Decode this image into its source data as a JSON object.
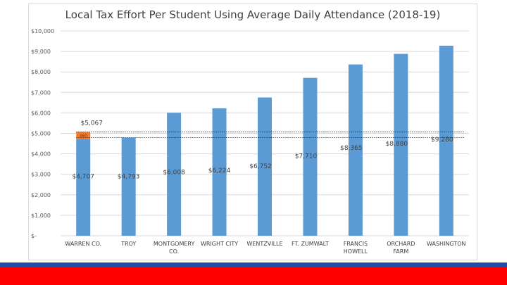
{
  "chart_data": {
    "type": "bar",
    "title": "Local Tax Effort Per Student Using Average Daily Attendance (2018-19)",
    "categories": [
      [
        "WARREN CO."
      ],
      [
        "TROY"
      ],
      [
        "MONTGOMERY",
        "CO."
      ],
      [
        "WRIGHT CITY"
      ],
      [
        "WENTZVILLE"
      ],
      [
        "FT. ZUMWALT"
      ],
      [
        "FRANCIS",
        "HOWELL"
      ],
      [
        "ORCHARD",
        "FARM"
      ],
      [
        "WASHINGTON"
      ]
    ],
    "values": [
      4707,
      4793,
      6008,
      6224,
      6752,
      7710,
      8365,
      8880,
      9280
    ],
    "value_labels": [
      "$4,707",
      "$4,793",
      "$6,008",
      "$6,224",
      "$6,752",
      "$7,710",
      "$8,365",
      "$8,880",
      "$9,280"
    ],
    "ylim": [
      0,
      10000
    ],
    "yticks": [
      0,
      1000,
      2000,
      3000,
      4000,
      5000,
      6000,
      7000,
      8000,
      9000,
      10000
    ],
    "ytick_labels": [
      "$-",
      "$1,000",
      "$2,000",
      "$3,000",
      "$4,000",
      "$5,000",
      "$6,000",
      "$7,000",
      "$8,000",
      "$9,000",
      "$10,000"
    ],
    "stacked_extra": {
      "category_index": 0,
      "value": 360,
      "label": "360",
      "total": 5067,
      "total_label": "$5,067"
    },
    "reference_lines": [
      5067,
      4793
    ],
    "grid": true,
    "bar_color": "#5b9bd5",
    "extra_color": "#ed7d31"
  }
}
